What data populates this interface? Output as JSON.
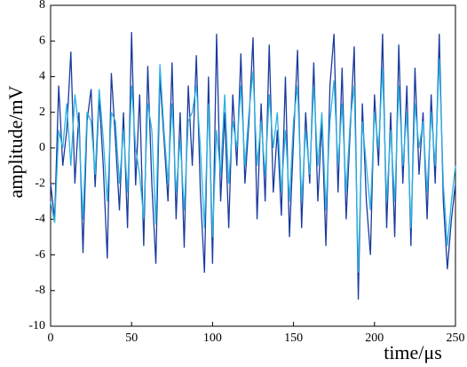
{
  "chart_data": {
    "type": "line",
    "x_label": "time/μs",
    "y_label": "amplitude/mV",
    "x": [
      0,
      2.5,
      5,
      7.5,
      10,
      12.5,
      15,
      17.5,
      20,
      22.5,
      25,
      27.5,
      30,
      32.5,
      35,
      37.5,
      40,
      42.5,
      45,
      47.5,
      50,
      52.5,
      55,
      57.5,
      60,
      62.5,
      65,
      67.5,
      70,
      72.5,
      75,
      77.5,
      80,
      82.5,
      85,
      87.5,
      90,
      92.5,
      95,
      97.5,
      100,
      102.5,
      105,
      107.5,
      110,
      112.5,
      115,
      117.5,
      120,
      122.5,
      125,
      127.5,
      130,
      132.5,
      135,
      137.5,
      140,
      142.5,
      145,
      147.5,
      150,
      152.5,
      155,
      157.5,
      160,
      162.5,
      165,
      167.5,
      170,
      172.5,
      175,
      177.5,
      180,
      182.5,
      185,
      187.5,
      190,
      192.5,
      195,
      197.5,
      200,
      202.5,
      205,
      207.5,
      210,
      212.5,
      215,
      217.5,
      220,
      222.5,
      225,
      227.5,
      230,
      232.5,
      235,
      237.5,
      240,
      242.5,
      245,
      247.5,
      250
    ],
    "series": [
      {
        "color": "#1a3a9e",
        "values": [
          -2,
          -4,
          3.5,
          -1,
          1,
          5.4,
          -2,
          2,
          -5.9,
          1.5,
          3.3,
          -2.2,
          2.9,
          -1,
          -6.2,
          4.2,
          0.5,
          -3.5,
          2,
          -4.5,
          6.5,
          -2.1,
          3,
          -5.5,
          4.6,
          -2,
          -6.5,
          4,
          0.5,
          -3,
          4.8,
          -4,
          2,
          -5.6,
          3.5,
          -1,
          5.2,
          -2.5,
          -7,
          4,
          -6.5,
          6.4,
          -3,
          2,
          -4.5,
          3,
          -1,
          5.3,
          -2,
          1.5,
          6.2,
          -4,
          2.5,
          -3,
          5.8,
          -2.5,
          1,
          -3.8,
          4,
          -5,
          0.5,
          5.5,
          -4.5,
          2,
          -2,
          4.8,
          -3,
          1.5,
          -5.5,
          3.5,
          6.4,
          -2.5,
          4.5,
          -4,
          1,
          5.7,
          -8.5,
          2.5,
          -3,
          -6,
          3,
          -1,
          6.4,
          -4.5,
          2,
          -5,
          5.8,
          -2,
          3.5,
          -5.5,
          4.5,
          -1.5,
          2,
          -4,
          3,
          -2,
          6.4,
          -3,
          -6.8,
          -4,
          -2
        ]
      },
      {
        "color": "#2ab2e0",
        "values": [
          -3,
          -4.2,
          1,
          0,
          2.5,
          -1,
          3,
          1,
          -4,
          2,
          1.5,
          -1.5,
          3.3,
          0.5,
          -3,
          2,
          1.5,
          -2,
          1,
          -2.5,
          3.5,
          0,
          -1.5,
          -4,
          2.5,
          1,
          -4.3,
          4.7,
          1,
          -2,
          2.5,
          -2.5,
          0.5,
          -3.5,
          1.5,
          2,
          3.5,
          0,
          -4.5,
          2.5,
          -5,
          1,
          -1.5,
          3,
          -2,
          1.5,
          0,
          3.5,
          -1,
          2,
          4.3,
          -1,
          1.5,
          -1.5,
          3,
          0,
          2,
          -2.5,
          1,
          -3,
          1.5,
          3.5,
          -3,
          1,
          -1.5,
          3.5,
          -1,
          2,
          -3.5,
          1.5,
          3.8,
          -1,
          2.5,
          -2.5,
          1.5,
          3.5,
          -7,
          1.5,
          -1,
          -3.5,
          2,
          0,
          4.5,
          -3,
          1,
          -3,
          3.5,
          -1,
          2,
          -4.5,
          2.5,
          0,
          1.5,
          -2.5,
          2,
          -1,
          5,
          -2,
          -5.5,
          -3,
          -1
        ]
      }
    ],
    "xlim": [
      0,
      250
    ],
    "xticks": [
      0,
      50,
      100,
      150,
      200,
      250
    ],
    "ylim": [
      -10,
      8
    ],
    "yticks": [
      -10,
      -8,
      -6,
      -4,
      -2,
      0,
      2,
      4,
      6,
      8
    ],
    "grid": false
  }
}
